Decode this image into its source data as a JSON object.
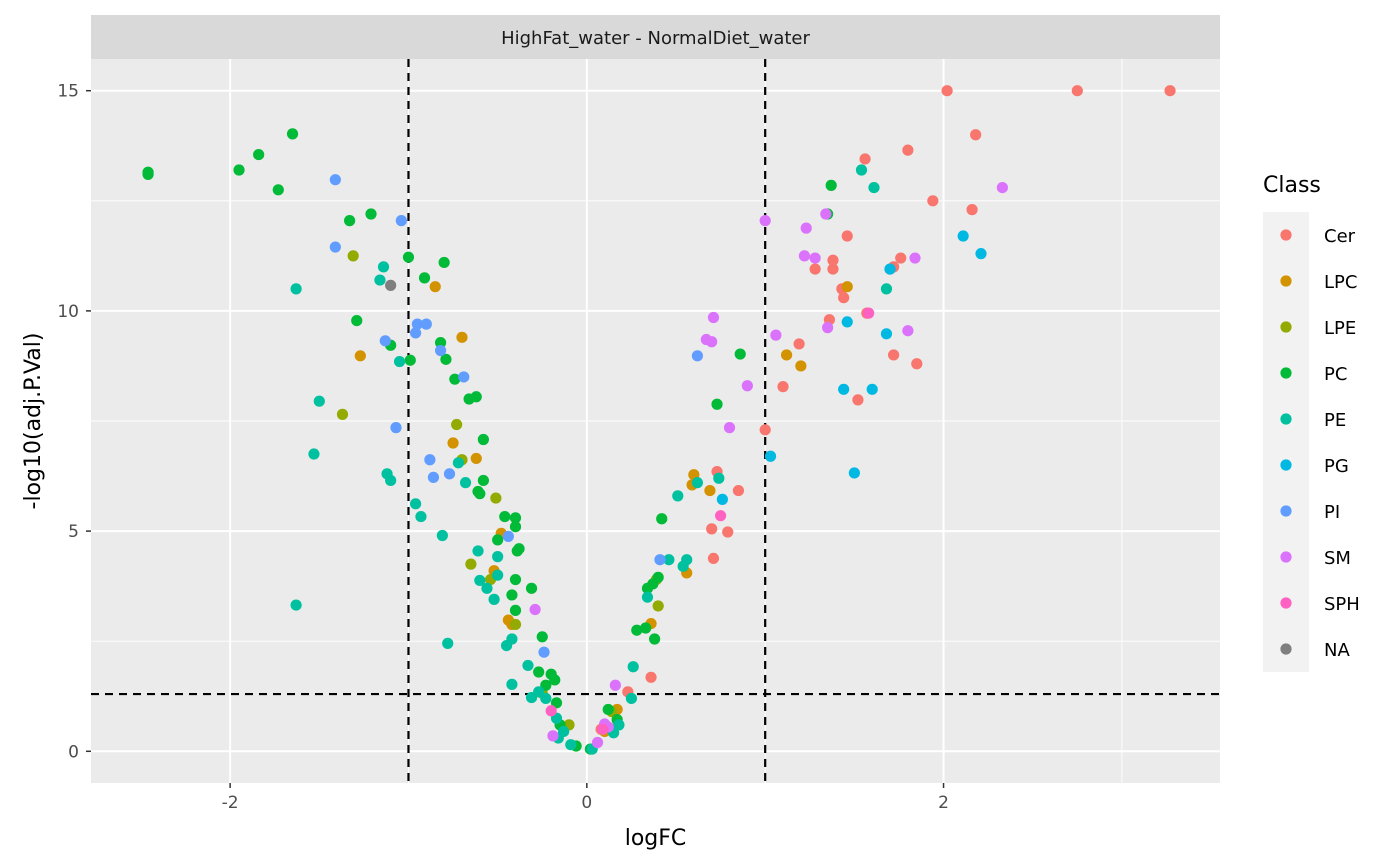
{
  "chart_data": {
    "type": "scatter",
    "facet_title": "HighFat_water - NormalDiet_water",
    "xlabel": "logFC",
    "ylabel": "-log10(adj.P.Val)",
    "xlim": [
      -2.78,
      3.55
    ],
    "ylim": [
      -0.72,
      15.72
    ],
    "x_ticks": [
      -2,
      0,
      2
    ],
    "x_tick_labels": [
      "-2",
      "0",
      "2"
    ],
    "y_ticks": [
      0,
      5,
      10,
      15
    ],
    "y_tick_labels": [
      "0",
      "5",
      "10",
      "15"
    ],
    "grid": true,
    "reference_lines": {
      "vertical": [
        -1,
        1
      ],
      "horizontal": [
        1.3
      ]
    },
    "legend": {
      "title": "Class",
      "position": "right",
      "entries": [
        {
          "name": "Cer",
          "color": "#F8766D"
        },
        {
          "name": "LPC",
          "color": "#D39200"
        },
        {
          "name": "LPE",
          "color": "#93AA00"
        },
        {
          "name": "PC",
          "color": "#00BA38"
        },
        {
          "name": "PE",
          "color": "#00C19F"
        },
        {
          "name": "PG",
          "color": "#00B9E3"
        },
        {
          "name": "PI",
          "color": "#619CFF"
        },
        {
          "name": "SM",
          "color": "#DB72FB"
        },
        {
          "name": "SPH",
          "color": "#FF61C3"
        },
        {
          "name": "NA",
          "color": "#7F7F7F"
        }
      ]
    },
    "series": [
      {
        "name": "Cer",
        "points": [
          [
            2.02,
            15.0
          ],
          [
            2.75,
            15.0
          ],
          [
            3.27,
            15.0
          ],
          [
            2.18,
            14.0
          ],
          [
            1.8,
            13.65
          ],
          [
            1.56,
            13.45
          ],
          [
            1.94,
            12.5
          ],
          [
            2.16,
            12.3
          ],
          [
            1.46,
            11.7
          ],
          [
            1.38,
            11.15
          ],
          [
            1.76,
            11.2
          ],
          [
            1.72,
            11.0
          ],
          [
            1.7,
            10.95
          ],
          [
            1.28,
            10.95
          ],
          [
            1.38,
            10.95
          ],
          [
            1.43,
            10.5
          ],
          [
            1.44,
            10.3
          ],
          [
            1.57,
            9.95
          ],
          [
            1.36,
            9.8
          ],
          [
            1.19,
            9.25
          ],
          [
            1.72,
            9.0
          ],
          [
            1.85,
            8.8
          ],
          [
            1.1,
            8.28
          ],
          [
            1.52,
            7.98
          ],
          [
            1.0,
            7.3
          ],
          [
            0.73,
            6.35
          ],
          [
            0.85,
            5.92
          ],
          [
            0.7,
            5.05
          ],
          [
            0.79,
            4.98
          ],
          [
            0.71,
            4.38
          ],
          [
            0.36,
            1.68
          ],
          [
            0.23,
            1.35
          ],
          [
            0.08,
            0.5
          ]
        ]
      },
      {
        "name": "LPC",
        "points": [
          [
            -0.85,
            10.55
          ],
          [
            -0.7,
            9.4
          ],
          [
            -1.27,
            8.98
          ],
          [
            -0.75,
            7.0
          ],
          [
            -0.62,
            6.65
          ],
          [
            -0.48,
            4.95
          ],
          [
            -0.52,
            4.1
          ],
          [
            -0.44,
            2.98
          ],
          [
            -0.42,
            2.88
          ],
          [
            0.6,
            6.28
          ],
          [
            0.59,
            6.05
          ],
          [
            0.69,
            5.92
          ],
          [
            0.56,
            4.05
          ],
          [
            0.36,
            2.9
          ],
          [
            0.17,
            0.95
          ],
          [
            0.1,
            0.45
          ],
          [
            1.2,
            8.75
          ],
          [
            1.12,
            9.0
          ],
          [
            1.46,
            10.55
          ]
        ]
      },
      {
        "name": "LPE",
        "points": [
          [
            -1.31,
            11.25
          ],
          [
            -1.37,
            7.65
          ],
          [
            -0.73,
            7.42
          ],
          [
            -0.7,
            6.62
          ],
          [
            -0.51,
            5.75
          ],
          [
            -0.65,
            4.25
          ],
          [
            -0.54,
            3.9
          ],
          [
            -0.4,
            2.88
          ],
          [
            -0.25,
            1.32
          ],
          [
            -0.1,
            0.6
          ],
          [
            0.4,
            3.3
          ],
          [
            0.39,
            3.9
          ],
          [
            0.14,
            0.9
          ]
        ]
      },
      {
        "name": "PC",
        "points": [
          [
            -2.46,
            13.15
          ],
          [
            -2.46,
            13.1
          ],
          [
            -1.65,
            14.02
          ],
          [
            -1.95,
            13.2
          ],
          [
            -1.84,
            13.55
          ],
          [
            -1.73,
            12.75
          ],
          [
            -1.21,
            12.2
          ],
          [
            -1.33,
            12.05
          ],
          [
            -1.0,
            11.22
          ],
          [
            -0.8,
            11.1
          ],
          [
            -0.91,
            10.75
          ],
          [
            -1.29,
            9.78
          ],
          [
            -1.1,
            9.22
          ],
          [
            -0.82,
            9.28
          ],
          [
            -0.99,
            8.88
          ],
          [
            -0.79,
            8.9
          ],
          [
            -0.74,
            8.45
          ],
          [
            -0.66,
            8.0
          ],
          [
            -0.62,
            8.05
          ],
          [
            -0.58,
            6.15
          ],
          [
            -0.61,
            5.9
          ],
          [
            -0.6,
            5.85
          ],
          [
            -0.58,
            7.08
          ],
          [
            -0.46,
            5.33
          ],
          [
            -0.4,
            5.3
          ],
          [
            -0.4,
            5.1
          ],
          [
            -0.5,
            4.8
          ],
          [
            -0.38,
            4.6
          ],
          [
            -0.39,
            4.55
          ],
          [
            -0.42,
            3.55
          ],
          [
            -0.4,
            3.9
          ],
          [
            -0.31,
            3.7
          ],
          [
            -0.4,
            3.2
          ],
          [
            -0.25,
            2.6
          ],
          [
            -0.27,
            1.8
          ],
          [
            -0.2,
            1.75
          ],
          [
            -0.18,
            1.62
          ],
          [
            -0.17,
            1.1
          ],
          [
            -0.15,
            0.6
          ],
          [
            -0.23,
            1.5
          ],
          [
            -0.06,
            0.12
          ],
          [
            0.02,
            0.05
          ],
          [
            0.14,
            0.5
          ],
          [
            0.17,
            0.72
          ],
          [
            0.12,
            0.95
          ],
          [
            0.28,
            2.75
          ],
          [
            0.33,
            2.8
          ],
          [
            0.34,
            3.7
          ],
          [
            0.37,
            3.8
          ],
          [
            0.4,
            3.95
          ],
          [
            0.38,
            2.55
          ],
          [
            0.42,
            5.28
          ],
          [
            0.73,
            7.88
          ],
          [
            0.86,
            9.02
          ],
          [
            1.37,
            12.85
          ],
          [
            1.35,
            12.2
          ]
        ]
      },
      {
        "name": "PE",
        "points": [
          [
            -1.63,
            10.5
          ],
          [
            -1.14,
            11.0
          ],
          [
            -1.16,
            10.7
          ],
          [
            -1.05,
            8.85
          ],
          [
            -1.5,
            7.95
          ],
          [
            -1.53,
            6.75
          ],
          [
            -1.12,
            6.3
          ],
          [
            -1.1,
            6.15
          ],
          [
            -0.96,
            5.62
          ],
          [
            -0.93,
            5.33
          ],
          [
            -0.81,
            4.9
          ],
          [
            -0.78,
            2.45
          ],
          [
            -1.63,
            3.32
          ],
          [
            -0.72,
            6.55
          ],
          [
            -0.68,
            6.1
          ],
          [
            -0.61,
            4.55
          ],
          [
            -0.6,
            3.88
          ],
          [
            -0.56,
            3.7
          ],
          [
            -0.5,
            4.42
          ],
          [
            -0.5,
            4.0
          ],
          [
            -0.52,
            3.45
          ],
          [
            -0.45,
            2.4
          ],
          [
            -0.42,
            2.55
          ],
          [
            -0.42,
            1.52
          ],
          [
            -0.33,
            1.95
          ],
          [
            -0.31,
            1.22
          ],
          [
            -0.27,
            1.35
          ],
          [
            -0.23,
            1.2
          ],
          [
            -0.17,
            0.75
          ],
          [
            -0.16,
            0.3
          ],
          [
            -0.13,
            0.45
          ],
          [
            -0.09,
            0.15
          ],
          [
            0.03,
            0.05
          ],
          [
            0.15,
            0.42
          ],
          [
            0.18,
            0.6
          ],
          [
            0.25,
            1.2
          ],
          [
            0.26,
            1.92
          ],
          [
            0.34,
            3.5
          ],
          [
            0.46,
            4.35
          ],
          [
            0.51,
            5.8
          ],
          [
            0.54,
            4.2
          ],
          [
            0.56,
            4.35
          ],
          [
            0.62,
            6.1
          ],
          [
            0.74,
            6.2
          ],
          [
            1.54,
            13.2
          ],
          [
            1.61,
            12.8
          ],
          [
            1.68,
            10.5
          ]
        ]
      },
      {
        "name": "PG",
        "points": [
          [
            2.11,
            11.7
          ],
          [
            2.21,
            11.3
          ],
          [
            1.7,
            10.95
          ],
          [
            1.46,
            9.75
          ],
          [
            1.68,
            9.48
          ],
          [
            1.44,
            8.22
          ],
          [
            1.6,
            8.22
          ],
          [
            1.5,
            6.32
          ],
          [
            1.03,
            6.7
          ],
          [
            0.76,
            5.72
          ]
        ]
      },
      {
        "name": "PI",
        "points": [
          [
            -1.41,
            12.98
          ],
          [
            -1.04,
            12.05
          ],
          [
            -1.41,
            11.45
          ],
          [
            -0.95,
            9.7
          ],
          [
            -0.9,
            9.7
          ],
          [
            -0.96,
            9.5
          ],
          [
            -1.13,
            9.32
          ],
          [
            -0.82,
            9.1
          ],
          [
            -0.69,
            8.5
          ],
          [
            -1.07,
            7.35
          ],
          [
            -0.88,
            6.62
          ],
          [
            -0.86,
            6.22
          ],
          [
            -0.77,
            6.3
          ],
          [
            -0.44,
            4.88
          ],
          [
            -0.24,
            2.25
          ],
          [
            0.62,
            8.98
          ],
          [
            0.41,
            4.35
          ]
        ]
      },
      {
        "name": "SM",
        "points": [
          [
            2.33,
            12.8
          ],
          [
            1.0,
            12.05
          ],
          [
            1.23,
            11.88
          ],
          [
            1.22,
            11.25
          ],
          [
            1.28,
            11.2
          ],
          [
            1.34,
            12.2
          ],
          [
            1.84,
            11.2
          ],
          [
            1.8,
            9.55
          ],
          [
            1.35,
            9.62
          ],
          [
            1.06,
            9.45
          ],
          [
            0.71,
            9.85
          ],
          [
            0.67,
            9.35
          ],
          [
            0.7,
            9.3
          ],
          [
            0.9,
            8.3
          ],
          [
            0.8,
            7.35
          ],
          [
            -0.29,
            3.22
          ],
          [
            -0.19,
            0.35
          ],
          [
            0.16,
            1.5
          ],
          [
            0.06,
            0.2
          ],
          [
            0.1,
            0.62
          ],
          [
            0.12,
            0.55
          ]
        ]
      },
      {
        "name": "SPH",
        "points": [
          [
            1.58,
            9.95
          ],
          [
            0.75,
            5.35
          ],
          [
            -0.2,
            0.92
          ],
          [
            0.09,
            0.5
          ]
        ]
      },
      {
        "name": "NA",
        "points": [
          [
            -1.1,
            10.58
          ]
        ]
      }
    ]
  }
}
